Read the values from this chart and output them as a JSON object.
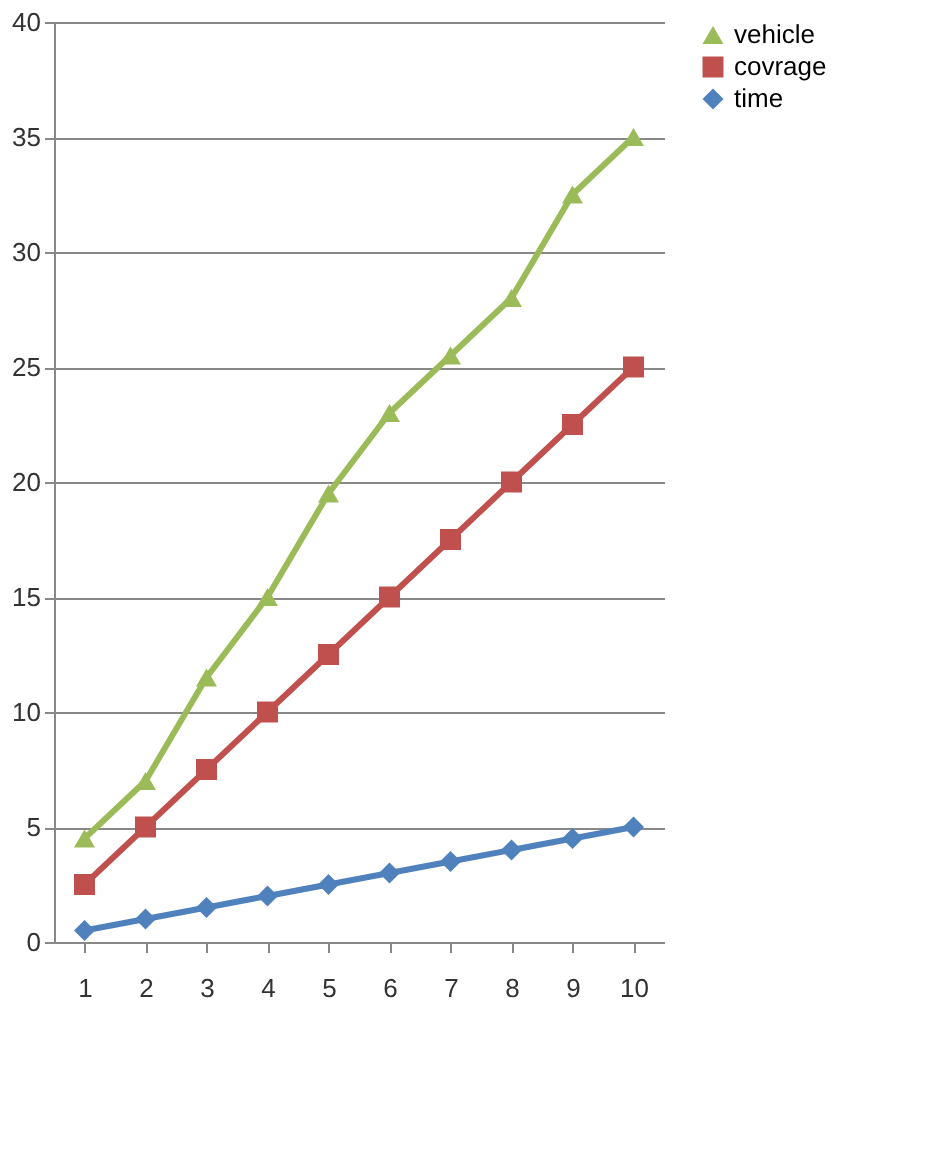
{
  "chart_data": {
    "type": "line",
    "categories": [
      "1",
      "2",
      "3",
      "4",
      "5",
      "6",
      "7",
      "8",
      "9",
      "10"
    ],
    "series": [
      {
        "name": "vehicle",
        "color": "#9bbb59",
        "marker": "triangle",
        "values": [
          4.5,
          7,
          11.5,
          15,
          19.5,
          23,
          25.5,
          28,
          32.5,
          35
        ]
      },
      {
        "name": "covrage",
        "color": "#c0504d",
        "marker": "square",
        "values": [
          2.5,
          5,
          7.5,
          10,
          12.5,
          15,
          17.5,
          20,
          22.5,
          25
        ]
      },
      {
        "name": "time",
        "color": "#4f81bd",
        "marker": "diamond",
        "values": [
          0.5,
          1,
          1.5,
          2,
          2.5,
          3,
          3.5,
          4,
          4.5,
          5
        ]
      }
    ],
    "ylim": [
      0,
      40
    ],
    "yticks": [
      0,
      5,
      10,
      15,
      20,
      25,
      30,
      35,
      40
    ],
    "grid": "y",
    "legend": "right",
    "line_style": "solid"
  }
}
